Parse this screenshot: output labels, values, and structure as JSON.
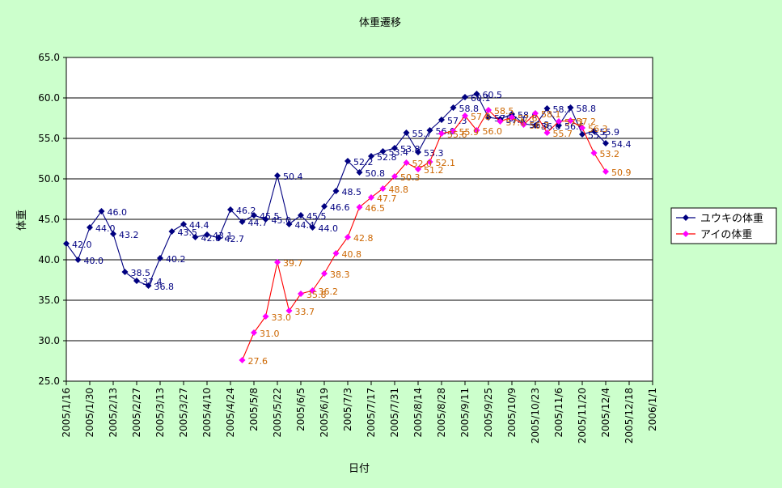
{
  "chart_data": {
    "type": "line",
    "title": "体重遷移",
    "xlabel": "日付",
    "ylabel": "体重",
    "ylim": [
      25.0,
      65.0
    ],
    "yticks": [
      "25.0",
      "30.0",
      "35.0",
      "40.0",
      "45.0",
      "50.0",
      "55.0",
      "60.0",
      "65.0"
    ],
    "xticks": [
      "2005/1/16",
      "2005/1/30",
      "2005/2/13",
      "2005/2/27",
      "2005/3/13",
      "2005/3/27",
      "2005/4/10",
      "2005/4/24",
      "2005/5/8",
      "2005/5/22",
      "2005/6/5",
      "2005/6/19",
      "2005/7/3",
      "2005/7/17",
      "2005/7/31",
      "2005/8/14",
      "2005/8/28",
      "2005/9/11",
      "2005/9/25",
      "2005/10/9",
      "2005/10/23",
      "2005/11/6",
      "2005/11/20",
      "2005/12/4",
      "2005/12/18",
      "2006/1/1"
    ],
    "grid": true,
    "legend_position": "right",
    "series": [
      {
        "name": "ユウキの体重",
        "color": "#000080",
        "label_color": "#000080",
        "marker": "diamond",
        "points": [
          [
            "2005/1/16",
            42.0
          ],
          [
            "2005/1/23",
            40.0
          ],
          [
            "2005/1/30",
            44.0
          ],
          [
            "2005/2/6",
            46.0
          ],
          [
            "2005/2/13",
            43.2
          ],
          [
            "2005/2/20",
            38.5
          ],
          [
            "2005/2/27",
            37.4
          ],
          [
            "2005/3/6",
            36.8
          ],
          [
            "2005/3/13",
            40.2
          ],
          [
            "2005/3/20",
            43.5
          ],
          [
            "2005/3/27",
            44.4
          ],
          [
            "2005/4/3",
            42.8
          ],
          [
            "2005/4/10",
            43.1
          ],
          [
            "2005/4/17",
            42.7
          ],
          [
            "2005/4/24",
            46.2
          ],
          [
            "2005/5/1",
            44.7
          ],
          [
            "2005/5/8",
            45.5
          ],
          [
            "2005/5/15",
            45.0
          ],
          [
            "2005/5/22",
            50.4
          ],
          [
            "2005/5/29",
            44.4
          ],
          [
            "2005/6/5",
            45.5
          ],
          [
            "2005/6/12",
            44.0
          ],
          [
            "2005/6/19",
            46.6
          ],
          [
            "2005/6/26",
            48.5
          ],
          [
            "2005/7/3",
            52.2
          ],
          [
            "2005/7/10",
            50.8
          ],
          [
            "2005/7/17",
            52.8
          ],
          [
            "2005/7/24",
            53.4
          ],
          [
            "2005/7/31",
            53.8
          ],
          [
            "2005/8/7",
            55.7
          ],
          [
            "2005/8/14",
            53.3
          ],
          [
            "2005/8/21",
            56.0
          ],
          [
            "2005/8/28",
            57.3
          ],
          [
            "2005/9/4",
            58.8
          ],
          [
            "2005/9/11",
            60.1
          ],
          [
            "2005/9/18",
            60.5
          ],
          [
            "2005/9/25",
            57.6
          ],
          [
            "2005/10/2",
            57.4
          ],
          [
            "2005/10/9",
            58.0
          ],
          [
            "2005/10/16",
            56.8
          ],
          [
            "2005/10/23",
            56.6
          ],
          [
            "2005/10/30",
            58.7
          ],
          [
            "2005/11/6",
            56.6
          ],
          [
            "2005/11/13",
            58.8
          ],
          [
            "2005/11/20",
            55.5
          ],
          [
            "2005/11/27",
            55.9
          ],
          [
            "2005/12/4",
            54.4
          ]
        ]
      },
      {
        "name": "アイの体重",
        "color": "#ff0000",
        "label_color": "#cc6600",
        "marker_color": "#ff00ff",
        "marker": "diamond",
        "points": [
          [
            "2005/5/1",
            27.6
          ],
          [
            "2005/5/8",
            31.0
          ],
          [
            "2005/5/15",
            33.0
          ],
          [
            "2005/5/22",
            39.7
          ],
          [
            "2005/5/29",
            33.7
          ],
          [
            "2005/6/5",
            35.8
          ],
          [
            "2005/6/12",
            36.2
          ],
          [
            "2005/6/19",
            38.3
          ],
          [
            "2005/6/26",
            40.8
          ],
          [
            "2005/7/3",
            42.8
          ],
          [
            "2005/7/10",
            46.5
          ],
          [
            "2005/7/17",
            47.7
          ],
          [
            "2005/7/24",
            48.8
          ],
          [
            "2005/7/31",
            50.3
          ],
          [
            "2005/8/7",
            52.0
          ],
          [
            "2005/8/14",
            51.2
          ],
          [
            "2005/8/21",
            52.1
          ],
          [
            "2005/8/28",
            55.6
          ],
          [
            "2005/9/4",
            55.9
          ],
          [
            "2005/9/11",
            57.8
          ],
          [
            "2005/9/18",
            56.0
          ],
          [
            "2005/9/25",
            58.5
          ],
          [
            "2005/10/2",
            57.1
          ],
          [
            "2005/10/9",
            57.6
          ],
          [
            "2005/10/16",
            56.7
          ],
          [
            "2005/10/23",
            58.1
          ],
          [
            "2005/10/30",
            55.7
          ],
          [
            "2005/11/6",
            57.1
          ],
          [
            "2005/11/13",
            57.2
          ],
          [
            "2005/11/20",
            56.3
          ],
          [
            "2005/11/27",
            53.2
          ],
          [
            "2005/12/4",
            50.9
          ]
        ]
      }
    ]
  }
}
